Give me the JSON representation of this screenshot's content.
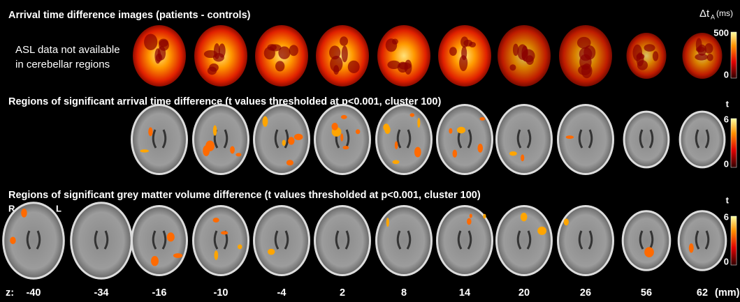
{
  "rows": [
    {
      "title": "Arrival time difference images (patients - controls)",
      "note": [
        "ASL data not available",
        "in cerebellar regions"
      ],
      "colorbar": {
        "symbol": "Δt",
        "subscript": "A",
        "unit": "(ms)",
        "max": 500,
        "min": 0
      }
    },
    {
      "title": "Regions of significant arrival time difference (t values thresholded at p<0.001, cluster 100)",
      "colorbar": {
        "symbol": "t",
        "max": 6,
        "min": 0
      }
    },
    {
      "title": "Regions of significant grey matter volume difference (t values thresholded at p<0.001, cluster 100)",
      "orientation": [
        "R",
        "L"
      ],
      "colorbar": {
        "symbol": "t",
        "max": 6,
        "min": 0
      }
    }
  ],
  "z_axis": {
    "label": "z:",
    "values": [
      -40,
      -34,
      -16,
      -10,
      -4,
      2,
      8,
      14,
      20,
      26,
      56,
      62
    ],
    "unit": "(mm)"
  }
}
